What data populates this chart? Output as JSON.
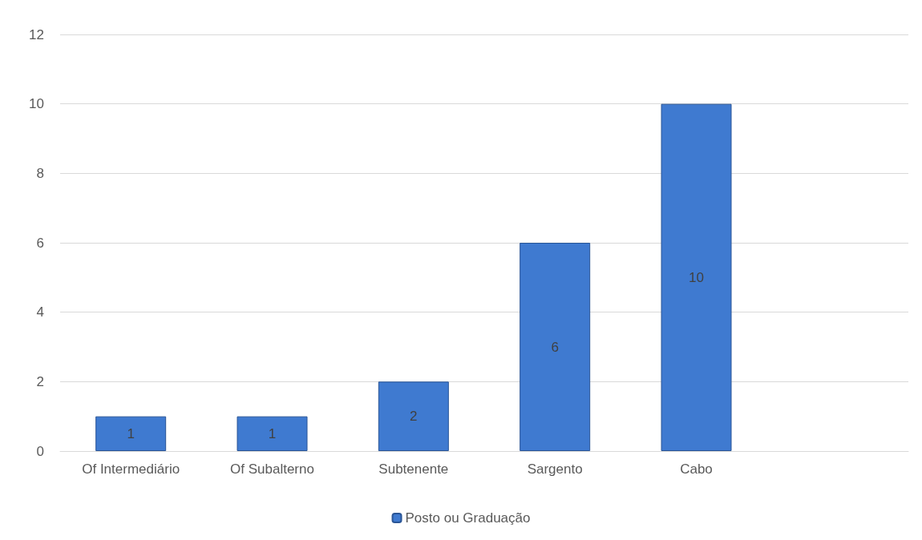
{
  "chart_data": {
    "type": "bar",
    "categories": [
      "Of Intermediário",
      "Of Subalterno",
      "Subtenente",
      "Sargento",
      "Cabo",
      null
    ],
    "series": [
      {
        "name": "Posto ou Graduação",
        "color": "#3f7ad0",
        "values": [
          1,
          1,
          2,
          6,
          10,
          null
        ]
      }
    ],
    "ylim": [
      0,
      12
    ],
    "yticks": [
      0,
      2,
      4,
      6,
      8,
      10,
      12
    ],
    "grid": "y",
    "legend": "bottom",
    "data_labels": true
  }
}
